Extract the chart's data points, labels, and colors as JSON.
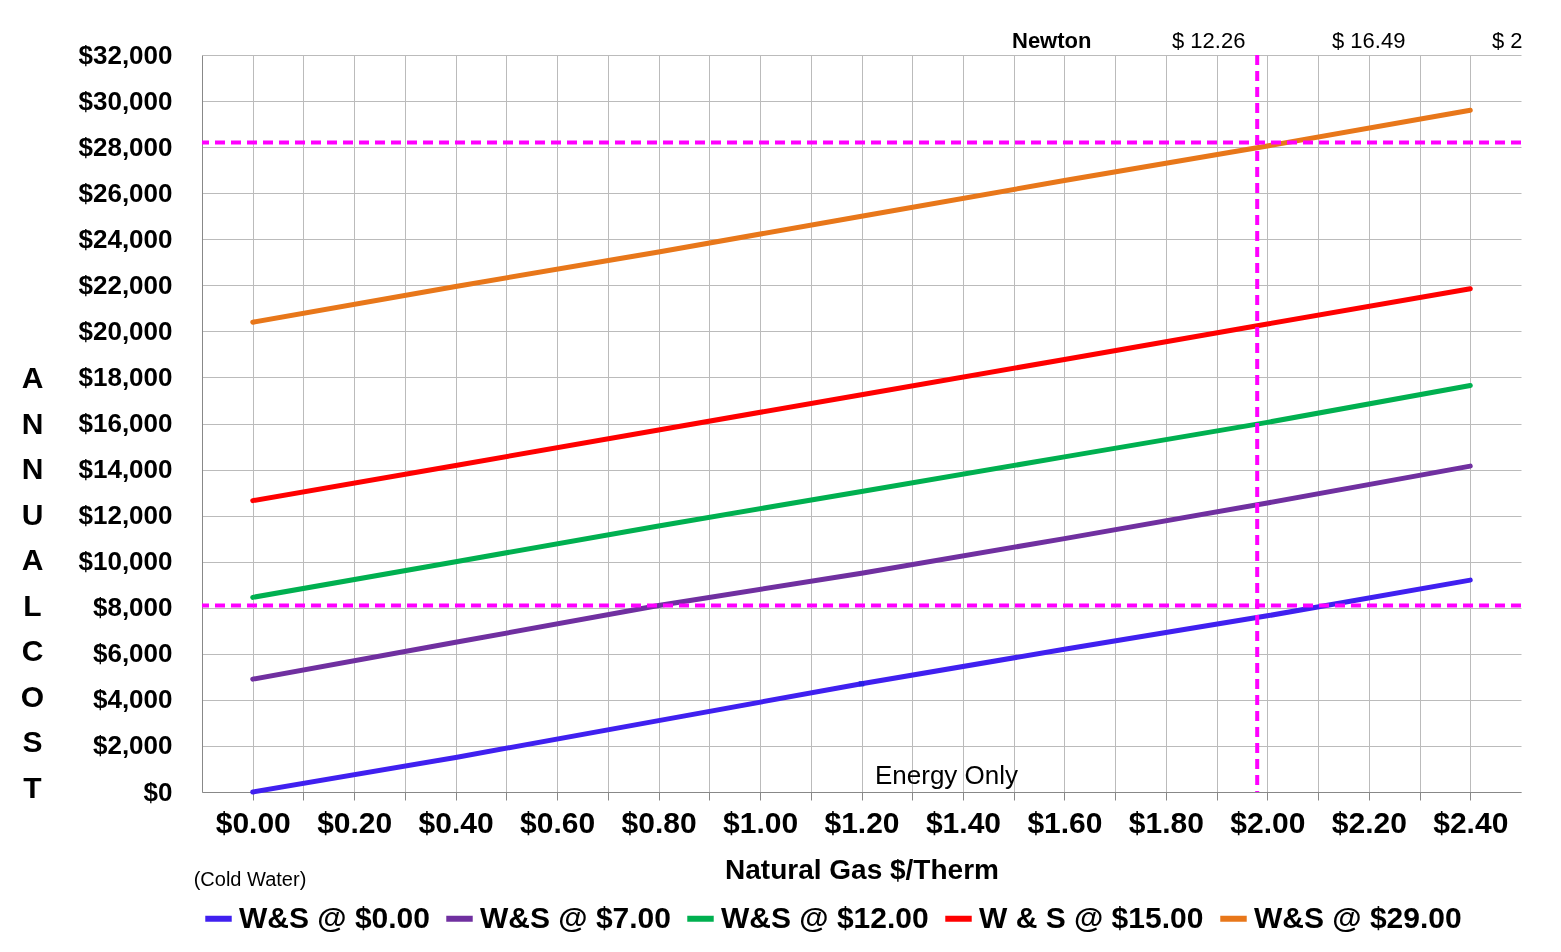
{
  "chart_data": {
    "type": "line",
    "xlabel": "Natural Gas $/Therm",
    "ylabel": "ANNUAL COST",
    "x": [
      0,
      0.4,
      0.8,
      1.2,
      1.6,
      2.0,
      2.4
    ],
    "series": [
      {
        "name": "W&S @ $0.00",
        "color": "#4020f0",
        "values": [
          0,
          1500,
          3100,
          4700,
          6200,
          7650,
          9200
        ]
      },
      {
        "name": "W&S @ $7.00",
        "color": "#7030a0",
        "values": [
          4900,
          6500,
          8100,
          9500,
          11000,
          12550,
          14150
        ]
      },
      {
        "name": "W&S @ $12.00",
        "color": "#00b050",
        "values": [
          8450,
          10000,
          11550,
          13050,
          14550,
          16050,
          17650
        ]
      },
      {
        "name": "W & S @ $15.00",
        "color": "#ff0000",
        "values": [
          12650,
          14180,
          15720,
          17250,
          18780,
          20320,
          21850
        ]
      },
      {
        "name": "W&S @ $29.00",
        "color": "#e8771a",
        "values": [
          20400,
          21950,
          23450,
          25000,
          26550,
          28050,
          29600
        ]
      }
    ],
    "xlim": [
      -0.1,
      2.5
    ],
    "xticks": [
      {
        "value": 0,
        "label": "$0.00"
      },
      {
        "value": 0.1,
        "label": null
      },
      {
        "value": 0.2,
        "label": "$0.20"
      },
      {
        "value": 0.3,
        "label": null
      },
      {
        "value": 0.4,
        "label": "$0.40"
      },
      {
        "value": 0.5,
        "label": null
      },
      {
        "value": 0.6,
        "label": "$0.60"
      },
      {
        "value": 0.7,
        "label": null
      },
      {
        "value": 0.8,
        "label": "$0.80"
      },
      {
        "value": 0.9,
        "label": null
      },
      {
        "value": 1.0,
        "label": "$1.00"
      },
      {
        "value": 1.1,
        "label": null
      },
      {
        "value": 1.2,
        "label": "$1.20"
      },
      {
        "value": 1.3,
        "label": null
      },
      {
        "value": 1.4,
        "label": "$1.40"
      },
      {
        "value": 1.5,
        "label": null
      },
      {
        "value": 1.6,
        "label": "$1.60"
      },
      {
        "value": 1.7,
        "label": null
      },
      {
        "value": 1.8,
        "label": "$1.80"
      },
      {
        "value": 1.9,
        "label": null
      },
      {
        "value": 2.0,
        "label": "$2.00"
      },
      {
        "value": 2.1,
        "label": null
      },
      {
        "value": 2.2,
        "label": "$2.20"
      },
      {
        "value": 2.3,
        "label": null
      },
      {
        "value": 2.4,
        "label": "$2.40"
      }
    ],
    "ylim": [
      0,
      32000
    ],
    "yticks": [
      {
        "value": 0,
        "label": "$0"
      },
      {
        "value": 2000,
        "label": "$2,000"
      },
      {
        "value": 4000,
        "label": "$4,000"
      },
      {
        "value": 6000,
        "label": "$6,000"
      },
      {
        "value": 8000,
        "label": "$8,000"
      },
      {
        "value": 10000,
        "label": "$10,000"
      },
      {
        "value": 12000,
        "label": "$12,000"
      },
      {
        "value": 14000,
        "label": "$14,000"
      },
      {
        "value": 16000,
        "label": "$16,000"
      },
      {
        "value": 18000,
        "label": "$18,000"
      },
      {
        "value": 20000,
        "label": "$20,000"
      },
      {
        "value": 22000,
        "label": "$22,000"
      },
      {
        "value": 24000,
        "label": "$24,000"
      },
      {
        "value": 26000,
        "label": "$26,000"
      },
      {
        "value": 28000,
        "label": "$28,000"
      },
      {
        "value": 30000,
        "label": "$30,000"
      },
      {
        "value": 32000,
        "label": "$32,000"
      }
    ],
    "ref_lines": [
      {
        "axis": "y",
        "value": 28200,
        "color": "#ff00ff",
        "line_style": "dashed"
      },
      {
        "axis": "y",
        "value": 8100,
        "color": "#ff00ff",
        "line_style": "dashed"
      },
      {
        "axis": "x",
        "value": 1.98,
        "color": "#ff00ff",
        "line_style": "dashed"
      }
    ],
    "annotations": [
      {
        "text": "Energy Only",
        "x": 1.2,
        "y": 4700
      },
      "(Cold Water)",
      "Newton",
      "$ 12.26",
      "$ 16.49",
      "$ 2"
    ],
    "grid": true,
    "legend": "bottom",
    "marker": "none",
    "line_style": "solid"
  }
}
